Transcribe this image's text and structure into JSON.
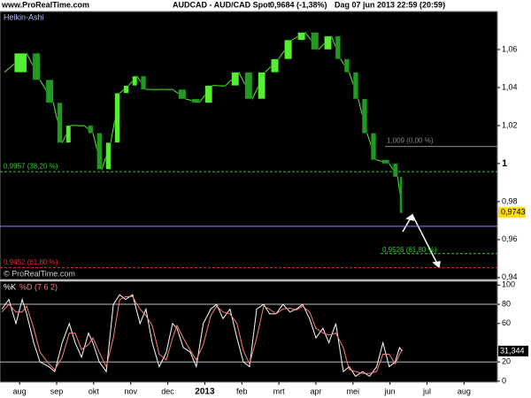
{
  "header": {
    "site": "www.ProRealTime.com",
    "instrument": "AUDCAD - AUD/CAD Spot",
    "quote": "0,9684 (-1,38%)",
    "period": "Dag 07 jun 2013 22:59 (20:59)"
  },
  "chart_data": [
    {
      "type": "candlestick",
      "title": "Heikin-Ashi",
      "watermark": "© ProRealTime.com",
      "color": "#55ee33",
      "x": [
        -0.41,
        0.19,
        0.55,
        0.91,
        1.15,
        1.38,
        1.74,
        1.98,
        2.22,
        2.46,
        2.7,
        2.94,
        3.17,
        3.41,
        3.77,
        4.13,
        4.49,
        4.85,
        5.2,
        5.56,
        5.92,
        6.28,
        6.63,
        6.99,
        7.35,
        7.71,
        8.07,
        8.42,
        8.66,
        8.9,
        9.14,
        9.38,
        9.62,
        9.98,
        10.21,
        10.33
      ],
      "values": [
        1.048,
        1.058,
        1.044,
        1.032,
        1.011,
        1.02,
        1.02,
        1.016,
        0.997,
        1.011,
        1.037,
        1.041,
        1.046,
        1.039,
        1.039,
        1.039,
        1.034,
        1.032,
        1.041,
        1.041,
        1.048,
        1.034,
        1.048,
        1.055,
        1.065,
        1.069,
        1.06,
        1.067,
        1.055,
        1.048,
        1.034,
        1.016,
        1.002,
        1.0,
        0.993,
        0.974
      ],
      "xlim": [
        -0.53,
        12.9
      ],
      "ylim": [
        0.939,
        1.08
      ],
      "yticks": [
        {
          "value": 1.06,
          "label": "1,06"
        },
        {
          "value": 1.04,
          "label": "1,04"
        },
        {
          "value": 1.02,
          "label": "1,02"
        },
        1,
        {
          "value": 0.98,
          "label": "0,98"
        },
        {
          "value": 0.96,
          "label": "0,96"
        },
        {
          "value": 0.94,
          "label": "0,94"
        }
      ],
      "levels": [
        {
          "value": 1.009,
          "label": "1,009 (0,00 %)",
          "color": "#888888"
        },
        {
          "value": 0.9957,
          "label": "0,9957 (38,20 %)",
          "color": "#33cc33"
        },
        {
          "value": 0.9526,
          "label": "0,9526 (61,80 %)",
          "color": "#33cc33"
        },
        {
          "value": 0.9452,
          "label": "0,9452 (61,80 %)",
          "color": "#dd3333"
        }
      ],
      "support_line": 0.967,
      "last_price": {
        "value": 0.9743,
        "label": "0,9743"
      }
    },
    {
      "type": "line",
      "x": [
        -0.48,
        -0.29,
        -0.1,
        0.07,
        0.19,
        0.38,
        0.55,
        0.79,
        0.95,
        1.15,
        1.34,
        1.5,
        1.67,
        1.86,
        1.98,
        2.15,
        2.34,
        2.53,
        2.7,
        2.86,
        3.05,
        3.25,
        3.41,
        3.58,
        3.77,
        3.96,
        4.13,
        4.25,
        4.42,
        4.61,
        4.77,
        4.96,
        5.16,
        5.32,
        5.49,
        5.68,
        5.87,
        6.04,
        6.21,
        6.4,
        6.59,
        6.75,
        6.92,
        7.11,
        7.3,
        7.47,
        7.64,
        7.83,
        8.0,
        8.19,
        8.35,
        8.54,
        8.74,
        8.9,
        9.07,
        9.26,
        9.45,
        9.64,
        9.81,
        9.98,
        10.14,
        10.26,
        10.33
      ],
      "series": [
        {
          "name": "%K",
          "color": "#ffffff",
          "values": [
            75,
            85,
            60,
            85,
            70,
            40,
            20,
            15,
            10,
            40,
            60,
            40,
            25,
            50,
            40,
            20,
            10,
            80,
            90,
            85,
            90,
            60,
            75,
            40,
            15,
            30,
            60,
            55,
            35,
            30,
            15,
            60,
            75,
            80,
            65,
            75,
            45,
            20,
            15,
            75,
            80,
            70,
            70,
            80,
            72,
            75,
            80,
            65,
            45,
            55,
            40,
            60,
            10,
            15,
            5,
            10,
            5,
            15,
            40,
            15,
            20,
            35,
            31.344
          ]
        },
        {
          "name": "%D (7 6 2)",
          "color": "#ff7f7f",
          "values": [
            72,
            80,
            72,
            72,
            78,
            55,
            30,
            18,
            12,
            25,
            50,
            50,
            33,
            38,
            45,
            30,
            15,
            45,
            85,
            88,
            88,
            75,
            68,
            58,
            28,
            22,
            45,
            58,
            45,
            32,
            22,
            38,
            68,
            78,
            72,
            70,
            60,
            32,
            18,
            45,
            78,
            75,
            70,
            75,
            76,
            74,
            78,
            72,
            55,
            50,
            48,
            50,
            35,
            12,
            10,
            8,
            8,
            10,
            28,
            28,
            18,
            28,
            33
          ]
        }
      ],
      "xlim": [
        -0.53,
        12.9
      ],
      "ylim": [
        -1,
        104
      ],
      "yticks": [
        0,
        20,
        60,
        80,
        100
      ],
      "reference_lines": [
        80,
        20
      ],
      "last_value": {
        "value": 31.344,
        "label": "31,344"
      },
      "xticks": [
        {
          "value": 0,
          "label": "aug"
        },
        {
          "value": 1,
          "label": "sep"
        },
        {
          "value": 2,
          "label": "okt"
        },
        {
          "value": 3,
          "label": "nov"
        },
        {
          "value": 4,
          "label": "dec"
        },
        {
          "value": 5,
          "label": "2013"
        },
        {
          "value": 6,
          "label": "feb"
        },
        {
          "value": 7,
          "label": "mrt"
        },
        {
          "value": 8,
          "label": "apr"
        },
        {
          "value": 9,
          "label": "mei"
        },
        {
          "value": 10,
          "label": "jun"
        },
        {
          "value": 11,
          "label": "jul"
        },
        {
          "value": 12,
          "label": "aug"
        }
      ]
    }
  ]
}
